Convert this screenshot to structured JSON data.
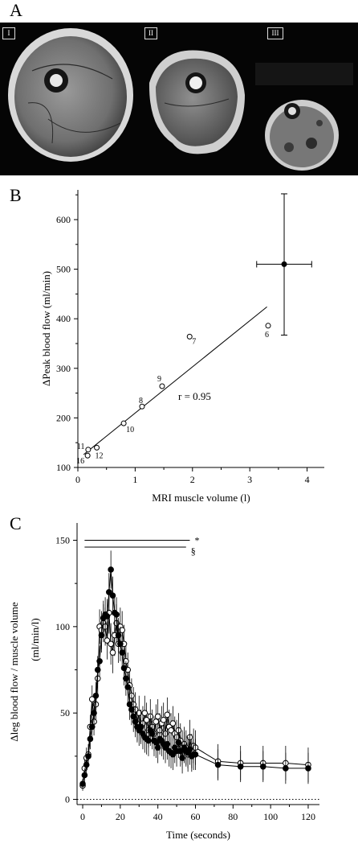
{
  "panels": {
    "a": {
      "letter": "A",
      "images": [
        {
          "tag": "I",
          "description": "MRI cross-section thigh"
        },
        {
          "tag": "II",
          "description": "MRI cross-section upper arm"
        },
        {
          "tag": "III",
          "description": "MRI cross-section forearm"
        }
      ]
    },
    "b": {
      "letter": "B"
    },
    "c": {
      "letter": "C"
    }
  },
  "chart_data": [
    {
      "type": "scatter",
      "panel": "B",
      "title": "",
      "xlabel": "MRI muscle volume (l)",
      "ylabel": "ΔPeak blood flow (ml/min)",
      "xlim": [
        0,
        4.3
      ],
      "ylim": [
        100,
        660
      ],
      "x_ticks": [
        0,
        1,
        2,
        3,
        4
      ],
      "y_ticks": [
        100,
        200,
        300,
        400,
        500,
        600
      ],
      "points": [
        {
          "label": "6",
          "x": 3.32,
          "y": 386
        },
        {
          "label": "7",
          "x": 1.95,
          "y": 364
        },
        {
          "label": "8",
          "x": 1.12,
          "y": 223
        },
        {
          "label": "9",
          "x": 1.47,
          "y": 264
        },
        {
          "label": "10",
          "x": 0.8,
          "y": 189
        },
        {
          "label": "11",
          "x": 0.18,
          "y": 136
        },
        {
          "label": "12",
          "x": 0.33,
          "y": 140
        },
        {
          "label": "16",
          "x": 0.17,
          "y": 124
        }
      ],
      "mean_point": {
        "x": 3.6,
        "y": 510,
        "x_err": [
          3.12,
          4.08
        ],
        "y_err": [
          367,
          652
        ]
      },
      "regression": {
        "x0": 0.1,
        "y0": 126,
        "x1": 3.3,
        "y1": 424
      },
      "annotation": "r = 0.95"
    },
    {
      "type": "line",
      "panel": "C",
      "title": "",
      "xlabel": "Time (seconds)",
      "ylabel": "Δleg blood flow / muscle volume",
      "ylabel_unit": "(ml/min/l)",
      "xlim": [
        -3,
        126
      ],
      "ylim": [
        -3,
        160
      ],
      "x_ticks": [
        0,
        20,
        40,
        60,
        80,
        100,
        120
      ],
      "y_ticks": [
        0,
        50,
        100,
        150
      ],
      "zero_line": "dotted",
      "significance": [
        {
          "symbol": "*",
          "x_start": 1,
          "x_end": 57,
          "y": 150
        },
        {
          "symbol": "§",
          "x_start": 1,
          "x_end": 55,
          "y": 146
        }
      ],
      "series": [
        {
          "marker": "filled",
          "x": [
            0,
            1,
            2,
            3,
            4,
            5,
            6,
            7,
            8,
            9,
            10,
            11,
            12,
            13,
            14,
            15,
            16,
            17,
            18,
            19,
            20,
            21,
            22,
            23,
            24,
            25,
            26,
            27,
            28,
            29,
            30,
            31,
            32,
            33,
            34,
            35,
            36,
            37,
            38,
            39,
            40,
            41,
            42,
            43,
            44,
            45,
            46,
            47,
            48,
            49,
            50,
            51,
            52,
            53,
            54,
            55,
            56,
            57,
            58,
            59,
            60,
            72,
            84,
            96,
            108,
            120
          ],
          "y": [
            9,
            14,
            20,
            25,
            35,
            42,
            50,
            60,
            75,
            80,
            95,
            105,
            107,
            106,
            120,
            133,
            118,
            108,
            107,
            95,
            90,
            85,
            76,
            70,
            65,
            55,
            52,
            48,
            45,
            42,
            40,
            42,
            38,
            36,
            35,
            34,
            40,
            38,
            34,
            33,
            30,
            35,
            34,
            32,
            30,
            32,
            28,
            27,
            26,
            30,
            28,
            33,
            28,
            24,
            30,
            28,
            27,
            29,
            25,
            26,
            26,
            20,
            19,
            19,
            18,
            18
          ],
          "err": [
            3,
            4,
            5,
            5,
            6,
            7,
            7,
            8,
            8,
            9,
            10,
            10,
            10,
            10,
            11,
            11,
            11,
            11,
            10,
            10,
            10,
            10,
            10,
            10,
            9,
            9,
            9,
            9,
            9,
            9,
            9,
            9,
            9,
            9,
            9,
            9,
            9,
            9,
            9,
            9,
            9,
            9,
            9,
            9,
            9,
            9,
            9,
            9,
            9,
            9,
            9,
            9,
            9,
            9,
            9,
            9,
            9,
            9,
            9,
            9,
            9,
            9,
            9,
            9,
            9,
            9
          ]
        },
        {
          "marker": "open",
          "x": [
            0,
            1,
            2,
            3,
            4,
            5,
            6,
            7,
            8,
            9,
            10,
            11,
            12,
            13,
            14,
            15,
            16,
            17,
            18,
            19,
            20,
            21,
            22,
            23,
            24,
            25,
            26,
            27,
            28,
            29,
            30,
            31,
            32,
            33,
            34,
            35,
            36,
            37,
            38,
            39,
            40,
            41,
            42,
            43,
            44,
            45,
            46,
            47,
            48,
            49,
            50,
            51,
            52,
            53,
            54,
            55,
            56,
            57,
            58,
            59,
            60,
            72,
            84,
            96,
            108,
            120
          ],
          "y": [
            8,
            18,
            24,
            26,
            42,
            58,
            45,
            55,
            70,
            100,
            98,
            102,
            100,
            92,
            108,
            90,
            85,
            95,
            102,
            90,
            100,
            98,
            90,
            80,
            75,
            66,
            60,
            55,
            52,
            44,
            50,
            42,
            44,
            50,
            46,
            40,
            48,
            42,
            38,
            45,
            48,
            40,
            44,
            46,
            38,
            49,
            42,
            40,
            44,
            38,
            36,
            40,
            34,
            30,
            32,
            30,
            26,
            36,
            28,
            31,
            30,
            22,
            21,
            21,
            21,
            20
          ],
          "err": [
            3,
            5,
            6,
            6,
            7,
            8,
            8,
            9,
            9,
            10,
            11,
            11,
            11,
            11,
            12,
            12,
            12,
            12,
            11,
            11,
            11,
            11,
            11,
            11,
            10,
            10,
            10,
            10,
            10,
            10,
            10,
            10,
            10,
            10,
            10,
            10,
            10,
            10,
            10,
            10,
            10,
            10,
            10,
            10,
            10,
            10,
            10,
            10,
            10,
            10,
            10,
            10,
            10,
            10,
            10,
            10,
            10,
            10,
            10,
            10,
            10,
            10,
            10,
            10,
            10,
            10
          ]
        }
      ]
    }
  ]
}
